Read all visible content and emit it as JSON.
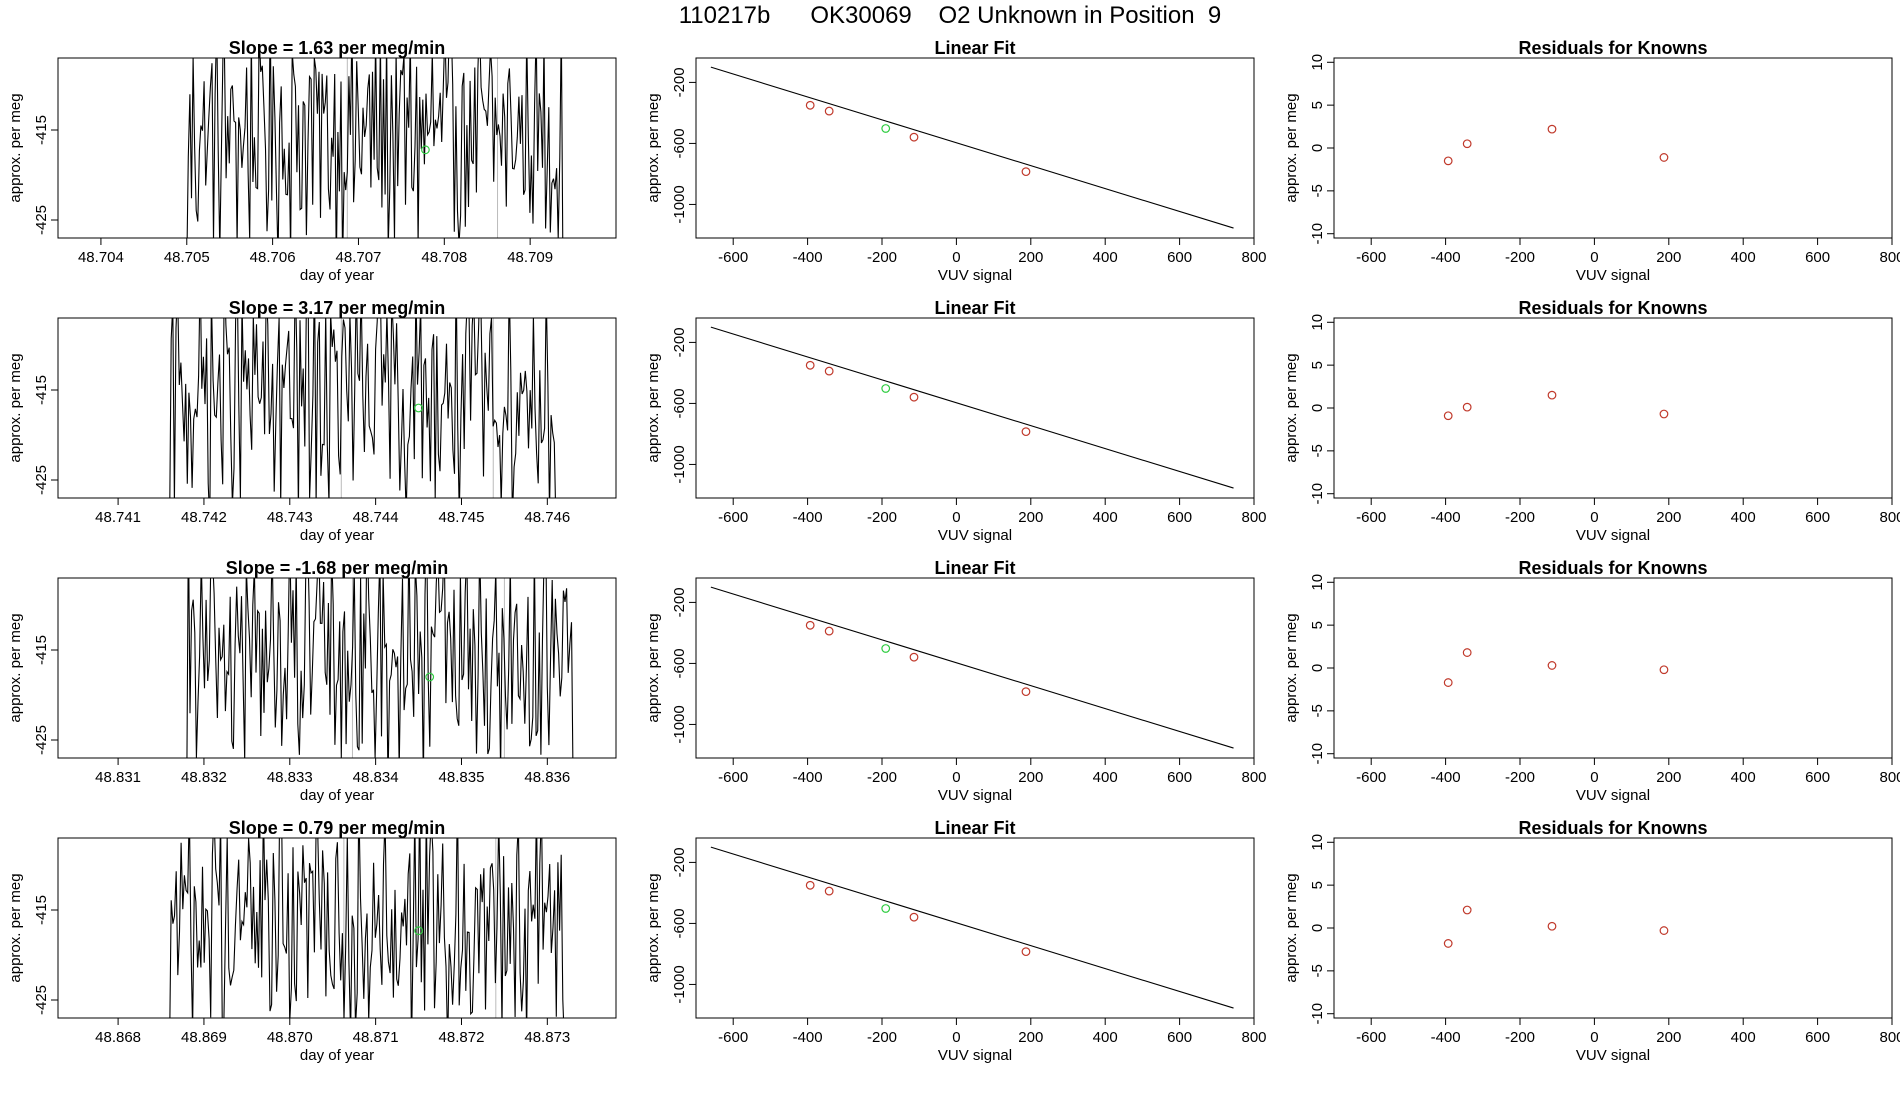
{
  "header": {
    "title": "110217b      OK30069    O2 Unknown in Position  9"
  },
  "colors": {
    "trace": "#000000",
    "known_point": "#c0392b",
    "unknown_point": "#2ecc40",
    "divider_line": "#bbbbbb"
  },
  "chart_data": [
    {
      "type": "line",
      "title": "Slope =  1.63  per meg/min",
      "xlabel": "day of year",
      "ylabel": "approx. per meg",
      "xlim": [
        48.7035,
        48.71
      ],
      "ylim": [
        -427,
        -407
      ],
      "xticks": [
        "48.704",
        "48.705",
        "48.706",
        "48.707",
        "48.708",
        "48.709"
      ],
      "yticks": [
        "-415",
        "-425"
      ],
      "trace_start": 48.705,
      "trace_end": 48.7094,
      "dividers": [
        48.70687,
        48.70862
      ],
      "unknown_point": {
        "x": 48.70778,
        "y": -417.2
      }
    },
    {
      "type": "scatter",
      "title": "Linear Fit",
      "xlabel": "VUV signal",
      "ylabel": "approx. per meg",
      "xlim": [
        -700,
        800
      ],
      "ylim": [
        -1220,
        -40
      ],
      "xticks": [
        "-600",
        "-400",
        "-200",
        "0",
        "200",
        "400",
        "600",
        "800"
      ],
      "yticks": [
        "-200",
        "-600",
        "-1000"
      ],
      "fit_line": {
        "x": [
          -660,
          745
        ],
        "y": [
          -100,
          -1155
        ]
      },
      "known_points": {
        "x": [
          -393,
          -342,
          -114,
          187
        ],
        "y": [
          -350,
          -388,
          -559,
          -785
        ]
      },
      "unknown_point": {
        "x": -190,
        "y": -502
      }
    },
    {
      "type": "scatter",
      "title": "Residuals for Knowns",
      "xlabel": "VUV signal",
      "ylabel": "approx. per meg",
      "xlim": [
        -700,
        800
      ],
      "ylim": [
        -10.5,
        10.5
      ],
      "xticks": [
        "-600",
        "-400",
        "-200",
        "0",
        "200",
        "400",
        "600",
        "800"
      ],
      "yticks": [
        "10",
        "5",
        "0",
        "-5",
        "-10"
      ],
      "known_points": {
        "x": [
          -393,
          -342,
          -114,
          187
        ],
        "y": [
          -1.5,
          0.5,
          2.2,
          -1.1
        ]
      }
    },
    {
      "type": "line",
      "title": "Slope =  3.17  per meg/min",
      "xlabel": "day of year",
      "ylabel": "approx. per meg",
      "xlim": [
        48.7403,
        48.7468
      ],
      "ylim": [
        -427,
        -407
      ],
      "xticks": [
        "48.741",
        "48.742",
        "48.743",
        "48.744",
        "48.745",
        "48.746"
      ],
      "yticks": [
        "-415",
        "-425"
      ],
      "trace_start": 48.7416,
      "trace_end": 48.7461,
      "dividers": [
        48.7436,
        48.74537
      ],
      "unknown_point": {
        "x": 48.7445,
        "y": -417.0
      }
    },
    {
      "type": "scatter",
      "title": "Linear Fit",
      "xlabel": "VUV signal",
      "ylabel": "approx. per meg",
      "xlim": [
        -700,
        800
      ],
      "ylim": [
        -1220,
        -40
      ],
      "xticks": [
        "-600",
        "-400",
        "-200",
        "0",
        "200",
        "400",
        "600",
        "800"
      ],
      "yticks": [
        "-200",
        "-600",
        "-1000"
      ],
      "fit_line": {
        "x": [
          -660,
          745
        ],
        "y": [
          -100,
          -1155
        ]
      },
      "known_points": {
        "x": [
          -393,
          -342,
          -114,
          187
        ],
        "y": [
          -350,
          -388,
          -559,
          -785
        ]
      },
      "unknown_point": {
        "x": -190,
        "y": -502
      }
    },
    {
      "type": "scatter",
      "title": "Residuals for Knowns",
      "xlabel": "VUV signal",
      "ylabel": "approx. per meg",
      "xlim": [
        -700,
        800
      ],
      "ylim": [
        -10.5,
        10.5
      ],
      "xticks": [
        "-600",
        "-400",
        "-200",
        "0",
        "200",
        "400",
        "600",
        "800"
      ],
      "yticks": [
        "10",
        "5",
        "0",
        "-5",
        "-10"
      ],
      "known_points": {
        "x": [
          -393,
          -342,
          -114,
          187
        ],
        "y": [
          -0.9,
          0.1,
          1.5,
          -0.7
        ]
      }
    },
    {
      "type": "line",
      "title": "Slope =  -1.68  per meg/min",
      "xlabel": "day of year",
      "ylabel": "approx. per meg",
      "xlim": [
        48.8303,
        48.8368
      ],
      "ylim": [
        -427,
        -407
      ],
      "xticks": [
        "48.831",
        "48.832",
        "48.833",
        "48.834",
        "48.835",
        "48.836"
      ],
      "yticks": [
        "-415",
        "-425"
      ],
      "trace_start": 48.8318,
      "trace_end": 48.8363,
      "dividers": [
        48.83373,
        48.8355
      ],
      "unknown_point": {
        "x": 48.83463,
        "y": -418.0
      }
    },
    {
      "type": "scatter",
      "title": "Linear Fit",
      "xlabel": "VUV signal",
      "ylabel": "approx. per meg",
      "xlim": [
        -700,
        800
      ],
      "ylim": [
        -1220,
        -40
      ],
      "xticks": [
        "-600",
        "-400",
        "-200",
        "0",
        "200",
        "400",
        "600",
        "800"
      ],
      "yticks": [
        "-200",
        "-600",
        "-1000"
      ],
      "fit_line": {
        "x": [
          -660,
          745
        ],
        "y": [
          -100,
          -1155
        ]
      },
      "known_points": {
        "x": [
          -393,
          -342,
          -114,
          187
        ],
        "y": [
          -350,
          -388,
          -559,
          -785
        ]
      },
      "unknown_point": {
        "x": -190,
        "y": -502
      }
    },
    {
      "type": "scatter",
      "title": "Residuals for Knowns",
      "xlabel": "VUV signal",
      "ylabel": "approx. per meg",
      "xlim": [
        -700,
        800
      ],
      "ylim": [
        -10.5,
        10.5
      ],
      "xticks": [
        "-600",
        "-400",
        "-200",
        "0",
        "200",
        "400",
        "600",
        "800"
      ],
      "yticks": [
        "10",
        "5",
        "0",
        "-5",
        "-10"
      ],
      "known_points": {
        "x": [
          -393,
          -342,
          -114,
          187
        ],
        "y": [
          -1.7,
          1.8,
          0.3,
          -0.2
        ]
      }
    },
    {
      "type": "line",
      "title": "Slope =  0.79  per meg/min",
      "xlabel": "day of year",
      "ylabel": "approx. per meg",
      "xlim": [
        48.8673,
        48.8738
      ],
      "ylim": [
        -427,
        -407
      ],
      "xticks": [
        "48.868",
        "48.869",
        "48.870",
        "48.871",
        "48.872",
        "48.873"
      ],
      "yticks": [
        "-415",
        "-425"
      ],
      "trace_start": 48.8686,
      "trace_end": 48.8732,
      "dividers": [
        48.87063,
        48.8724
      ],
      "unknown_point": {
        "x": 48.8715,
        "y": -417.3
      }
    },
    {
      "type": "scatter",
      "title": "Linear Fit",
      "xlabel": "VUV signal",
      "ylabel": "approx. per meg",
      "xlim": [
        -700,
        800
      ],
      "ylim": [
        -1220,
        -40
      ],
      "xticks": [
        "-600",
        "-400",
        "-200",
        "0",
        "200",
        "400",
        "600",
        "800"
      ],
      "yticks": [
        "-200",
        "-600",
        "-1000"
      ],
      "fit_line": {
        "x": [
          -660,
          745
        ],
        "y": [
          -100,
          -1155
        ]
      },
      "known_points": {
        "x": [
          -393,
          -342,
          -114,
          187
        ],
        "y": [
          -350,
          -388,
          -559,
          -785
        ]
      },
      "unknown_point": {
        "x": -190,
        "y": -502
      }
    },
    {
      "type": "scatter",
      "title": "Residuals for Knowns",
      "xlabel": "VUV signal",
      "ylabel": "approx. per meg",
      "xlim": [
        -700,
        800
      ],
      "ylim": [
        -10.5,
        10.5
      ],
      "xticks": [
        "-600",
        "-400",
        "-200",
        "0",
        "200",
        "400",
        "600",
        "800"
      ],
      "yticks": [
        "10",
        "5",
        "0",
        "-5",
        "-10"
      ],
      "known_points": {
        "x": [
          -393,
          -342,
          -114,
          187
        ],
        "y": [
          -1.8,
          2.1,
          0.2,
          -0.3
        ]
      }
    }
  ]
}
